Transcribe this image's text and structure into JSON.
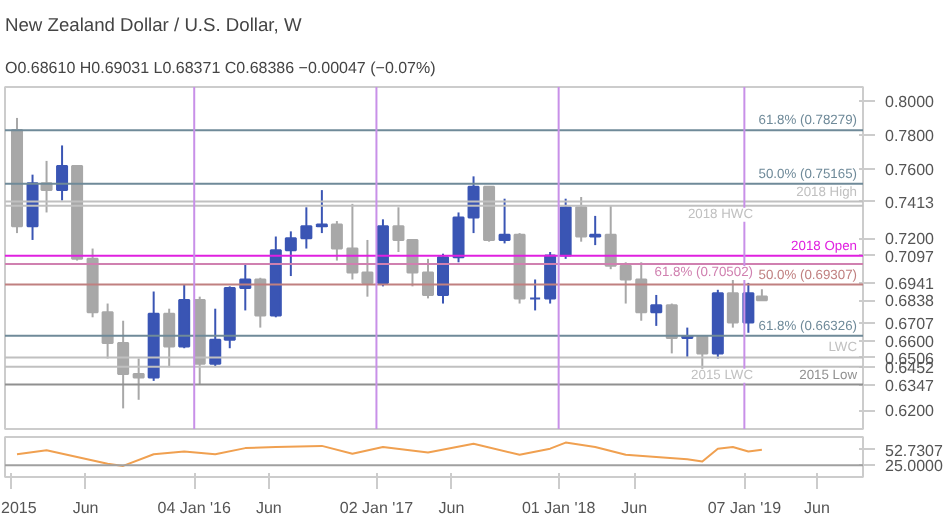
{
  "chart_data": [
    {
      "type": "candlestick",
      "title": "New Zealand Dollar / U.S. Dollar, W",
      "subtitle": "O0.68610 H0.69031 L0.68371 C0.68386 −0.00047 (−0.07%)",
      "x": [
        "2015-01-15",
        "2015-02-15",
        "2015-03-15",
        "2015-04-15",
        "2015-05-15",
        "2015-06-15",
        "2015-07-15",
        "2015-08-15",
        "2015-09-15",
        "2015-10-15",
        "2015-11-15",
        "2015-12-15",
        "2016-01-15",
        "2016-02-15",
        "2016-03-15",
        "2016-04-15",
        "2016-05-15",
        "2016-06-15",
        "2016-07-15",
        "2016-08-15",
        "2016-09-15",
        "2016-10-15",
        "2016-11-15",
        "2016-12-15",
        "2017-01-15",
        "2017-02-15",
        "2017-03-15",
        "2017-04-15",
        "2017-05-15",
        "2017-06-15",
        "2017-07-15",
        "2017-08-15",
        "2017-09-15",
        "2017-10-15",
        "2017-11-15",
        "2017-12-15",
        "2018-01-15",
        "2018-02-15",
        "2018-03-15",
        "2018-04-15",
        "2018-05-15",
        "2018-06-15",
        "2018-07-15",
        "2018-08-15",
        "2018-09-15",
        "2018-10-15",
        "2018-11-15",
        "2018-12-15",
        "2019-01-15",
        "2019-02-11"
      ],
      "ohlc": [
        [
          0.783,
          0.79,
          0.723,
          0.727
        ],
        [
          0.727,
          0.757,
          0.719,
          0.752
        ],
        [
          0.752,
          0.765,
          0.735,
          0.748
        ],
        [
          0.748,
          0.774,
          0.742,
          0.762
        ],
        [
          0.762,
          0.762,
          0.707,
          0.708
        ],
        [
          0.708,
          0.714,
          0.674,
          0.677
        ],
        [
          0.677,
          0.682,
          0.65,
          0.659
        ],
        [
          0.659,
          0.672,
          0.621,
          0.641
        ],
        [
          0.641,
          0.65,
          0.626,
          0.639
        ],
        [
          0.639,
          0.689,
          0.637,
          0.676
        ],
        [
          0.676,
          0.679,
          0.645,
          0.657
        ],
        [
          0.657,
          0.693,
          0.656,
          0.684
        ],
        [
          0.684,
          0.686,
          0.635,
          0.647
        ],
        [
          0.647,
          0.679,
          0.645,
          0.661
        ],
        [
          0.661,
          0.692,
          0.656,
          0.691
        ],
        [
          0.691,
          0.705,
          0.678,
          0.696
        ],
        [
          0.696,
          0.697,
          0.668,
          0.675
        ],
        [
          0.675,
          0.721,
          0.674,
          0.713
        ],
        [
          0.713,
          0.724,
          0.698,
          0.72
        ],
        [
          0.72,
          0.738,
          0.714,
          0.727
        ],
        [
          0.727,
          0.748,
          0.723,
          0.728
        ],
        [
          0.728,
          0.73,
          0.707,
          0.714
        ],
        [
          0.714,
          0.74,
          0.696,
          0.7
        ],
        [
          0.7,
          0.719,
          0.686,
          0.694
        ],
        [
          0.694,
          0.731,
          0.692,
          0.727
        ],
        [
          0.727,
          0.738,
          0.712,
          0.719
        ],
        [
          0.719,
          0.719,
          0.692,
          0.7
        ],
        [
          0.7,
          0.708,
          0.685,
          0.687
        ],
        [
          0.687,
          0.711,
          0.682,
          0.709
        ],
        [
          0.709,
          0.735,
          0.706,
          0.732
        ],
        [
          0.732,
          0.756,
          0.723,
          0.75
        ],
        [
          0.75,
          0.75,
          0.718,
          0.719
        ],
        [
          0.719,
          0.743,
          0.717,
          0.722
        ],
        [
          0.722,
          0.723,
          0.682,
          0.685
        ],
        [
          0.685,
          0.696,
          0.678,
          0.685
        ],
        [
          0.685,
          0.712,
          0.682,
          0.71
        ],
        [
          0.71,
          0.743,
          0.708,
          0.738
        ],
        [
          0.738,
          0.744,
          0.718,
          0.721
        ],
        [
          0.721,
          0.733,
          0.716,
          0.722
        ],
        [
          0.722,
          0.739,
          0.702,
          0.704
        ],
        [
          0.704,
          0.706,
          0.682,
          0.696
        ],
        [
          0.696,
          0.706,
          0.672,
          0.677
        ],
        [
          0.677,
          0.687,
          0.669,
          0.681
        ],
        [
          0.681,
          0.682,
          0.653,
          0.662
        ],
        [
          0.662,
          0.668,
          0.651,
          0.663
        ],
        [
          0.663,
          0.663,
          0.642,
          0.653
        ],
        [
          0.653,
          0.69,
          0.65,
          0.688
        ],
        [
          0.688,
          0.697,
          0.668,
          0.671
        ],
        [
          0.671,
          0.694,
          0.665,
          0.688
        ],
        [
          0.6861,
          0.69031,
          0.68371,
          0.68386
        ]
      ],
      "xlim": [
        "2014-12-22",
        "2019-09-01"
      ],
      "ylim": [
        0.609,
        0.808
      ],
      "yticks": [
        {
          "value": 0.8,
          "label": "0.8000"
        },
        {
          "value": 0.78,
          "label": "0.7800"
        },
        {
          "value": 0.76,
          "label": "0.7600"
        },
        {
          "value": 0.7413,
          "label": "0.7413"
        },
        {
          "value": 0.72,
          "label": "0.7200"
        },
        {
          "value": 0.7097,
          "label": "0.7097"
        },
        {
          "value": 0.6941,
          "label": "0.6941"
        },
        {
          "value": 0.6838,
          "label": "0.6838"
        },
        {
          "value": 0.6707,
          "label": "0.6707"
        },
        {
          "value": 0.66,
          "label": "0.6600"
        },
        {
          "value": 0.6506,
          "label": "0.6506"
        },
        {
          "value": 0.6452,
          "label": "0.6452"
        },
        {
          "value": 0.6347,
          "label": "0.6347"
        },
        {
          "value": 0.62,
          "label": "0.6200"
        }
      ],
      "tick_labels": "y",
      "ref_lines": [
        {
          "axis": "y",
          "value": 0.78279,
          "label": "61.8% (0.78279)",
          "color": "#6f8a99"
        },
        {
          "axis": "y",
          "value": 0.75165,
          "label": "50.0% (0.75165)",
          "color": "#6f8a99"
        },
        {
          "axis": "y",
          "value": 0.74135,
          "label": "2018 High",
          "color": "#c0c0c0"
        },
        {
          "axis": "y",
          "value": 0.7389,
          "label": "2018 HWC",
          "color": "#c0c0c0"
        },
        {
          "axis": "y",
          "value": 0.70975,
          "label": "2018 Open",
          "color": "#e020e0"
        },
        {
          "axis": "y",
          "value": 0.70502,
          "label": "61.8% (0.70502)",
          "color": "#d080b0"
        },
        {
          "axis": "y",
          "value": 0.69307,
          "label": "50.0% (0.69307)",
          "color": "#c08080"
        },
        {
          "axis": "y",
          "value": 0.66326,
          "label": "61.8% (0.66326)",
          "color": "#6f8a99"
        },
        {
          "axis": "y",
          "value": 0.65066,
          "label": "LWC",
          "color": "#c0c0c0"
        },
        {
          "axis": "y",
          "value": 0.64523,
          "label": "2015 LWC",
          "color": "#c0c0c0"
        },
        {
          "axis": "y",
          "value": 0.63487,
          "label": "2015 Low",
          "color": "#909090"
        },
        {
          "axis": "x",
          "value": "2016-01-04",
          "color": "#c890e8"
        },
        {
          "axis": "x",
          "value": "2017-01-02",
          "color": "#c890e8"
        },
        {
          "axis": "x",
          "value": "2018-01-01",
          "color": "#c890e8"
        },
        {
          "axis": "x",
          "value": "2019-01-07",
          "color": "#c890e8"
        }
      ]
    },
    {
      "type": "line",
      "x": [
        "2015-01-15",
        "2015-03-15",
        "2015-05-15",
        "2015-07-15",
        "2015-08-15",
        "2015-10-15",
        "2015-12-15",
        "2016-02-15",
        "2016-04-15",
        "2016-06-15",
        "2016-09-15",
        "2016-11-15",
        "2017-01-15",
        "2017-04-15",
        "2017-07-15",
        "2017-10-15",
        "2017-12-15",
        "2018-01-15",
        "2018-03-15",
        "2018-05-15",
        "2018-07-15",
        "2018-09-15",
        "2018-10-15",
        "2018-11-15",
        "2018-12-15",
        "2019-01-15",
        "2019-02-11"
      ],
      "series": [
        {
          "color": "#f0a050",
          "values": [
            45,
            52,
            40,
            28,
            24,
            45,
            50,
            45,
            56,
            58,
            60,
            46,
            58,
            48,
            64,
            44,
            55,
            66,
            58,
            44,
            40,
            36,
            32,
            55,
            58,
            50,
            53
          ]
        }
      ],
      "xlim": [
        "2014-12-22",
        "2019-09-01"
      ],
      "xticks": [
        {
          "value": "2015-01-01",
          "label": "2015"
        },
        {
          "value": "2015-06-01",
          "label": "Jun"
        },
        {
          "value": "2016-01-04",
          "label": "04 Jan '16"
        },
        {
          "value": "2016-06-01",
          "label": "Jun"
        },
        {
          "value": "2017-01-02",
          "label": "02 Jan '17"
        },
        {
          "value": "2017-06-01",
          "label": "Jun"
        },
        {
          "value": "2018-01-01",
          "label": "01 Jan '18"
        },
        {
          "value": "2018-06-01",
          "label": "Jun"
        },
        {
          "value": "2019-01-07",
          "label": "07 Jan '19"
        },
        {
          "value": "2019-06-01",
          "label": "Jun"
        }
      ],
      "ylim": [
        4,
        76
      ],
      "yticks": [
        {
          "value": 52.7307,
          "label": "52.7307"
        },
        {
          "value": 25,
          "label": "25.0000"
        }
      ],
      "ref_lines": [
        {
          "axis": "y",
          "value": 25,
          "color": "#a0a0a0"
        }
      ]
    }
  ]
}
